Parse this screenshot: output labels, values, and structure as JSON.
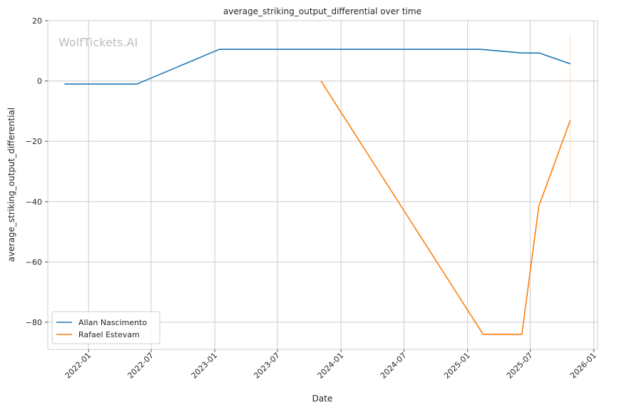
{
  "chart_data": {
    "type": "line",
    "title": "average_striking_output_differential over time",
    "xlabel": "Date",
    "ylabel": "average_striking_output_differential",
    "watermark": "WolfTickets.AI",
    "xlim": [
      "2021-09-05",
      "2026-01-12"
    ],
    "ylim": [
      -89,
      20
    ],
    "x_ticks": [
      "2022-01",
      "2022-07",
      "2023-01",
      "2023-07",
      "2024-01",
      "2024-07",
      "2025-01",
      "2025-07",
      "2026-01"
    ],
    "y_ticks": [
      20,
      0,
      -20,
      -40,
      -60,
      -80
    ],
    "grid": true,
    "legend_position": "lower-left",
    "series": [
      {
        "name": "Allan Nascimento",
        "color": "#1f77b4",
        "points": [
          {
            "x": "2021-10-23",
            "y": -1
          },
          {
            "x": "2022-05-21",
            "y": -1
          },
          {
            "x": "2023-01-14",
            "y": 10.5
          },
          {
            "x": "2025-02-08",
            "y": 10.5
          },
          {
            "x": "2025-06-07",
            "y": 9.3
          },
          {
            "x": "2025-07-27",
            "y": 9.3
          },
          {
            "x": "2025-10-25",
            "y": 5.7
          }
        ]
      },
      {
        "name": "Rafael Estevam",
        "color": "#ff7f0e",
        "points": [
          {
            "x": "2023-11-04",
            "y": 0
          },
          {
            "x": "2025-02-15",
            "y": -84
          },
          {
            "x": "2025-06-07",
            "y": -84
          },
          {
            "x": "2025-07-26",
            "y": -41.5
          },
          {
            "x": "2025-10-25",
            "y": -13
          }
        ]
      }
    ],
    "error_band": {
      "x": "2025-10-25",
      "low": -41.5,
      "high": 15.5,
      "color": "#ff7f0e"
    }
  }
}
